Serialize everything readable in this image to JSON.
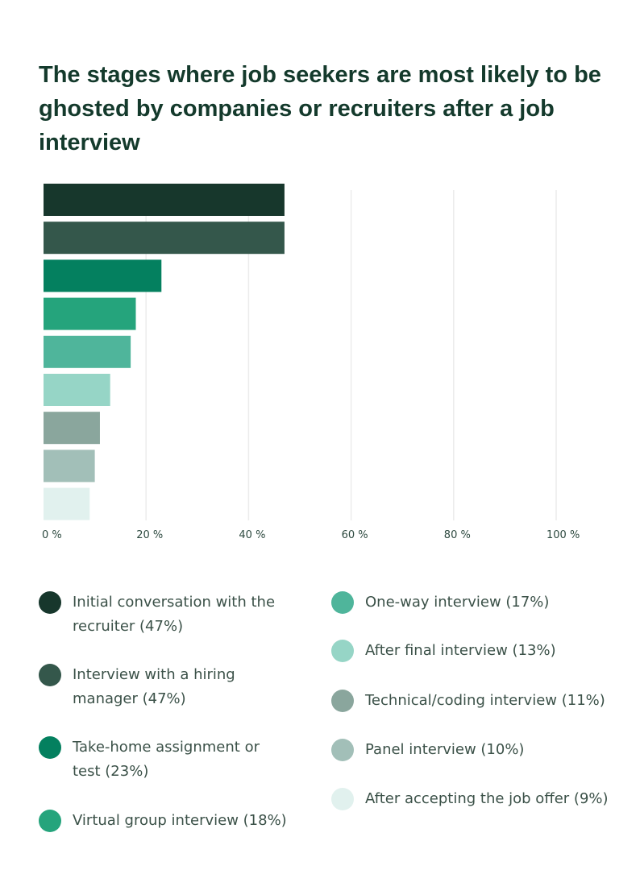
{
  "chart_data": {
    "type": "bar",
    "orientation": "horizontal",
    "title": "The stages where job seekers are most likely to be ghosted by companies or recruiters after a job interview",
    "categories": [
      "Initial conversation with the recruiter",
      "Interview with a hiring manager",
      "Take-home assignment or test",
      "Virtual group interview",
      "One-way interview",
      "After final interview",
      "Technical/coding interview",
      "Panel interview",
      "After accepting the job offer"
    ],
    "values": [
      47,
      47,
      23,
      18,
      17,
      13,
      11,
      10,
      9
    ],
    "legend_labels": [
      "Initial conversation with the recruiter (47%)",
      "Interview with a hiring manager (47%)",
      "Take-home assignment or test (23%)",
      "Virtual group interview (18%)",
      "One-way interview (17%)",
      "After final interview (13%)",
      "Technical/coding interview (11%)",
      "Panel interview (10%)",
      "After accepting the job offer (9%)"
    ],
    "colors": [
      "#17372c",
      "#34574b",
      "#04805f",
      "#25a47c",
      "#4fb59b",
      "#96d5c6",
      "#8aa69d",
      "#a2bfb8",
      "#e1f1ee"
    ],
    "xlim": [
      0,
      100
    ],
    "xticks": [
      0,
      20,
      40,
      60,
      80,
      100
    ],
    "xtick_labels": [
      "0 %",
      "20 %",
      "40 %",
      "60 %",
      "80 %",
      "100 %"
    ],
    "grid": true,
    "legend_position": "bottom"
  }
}
